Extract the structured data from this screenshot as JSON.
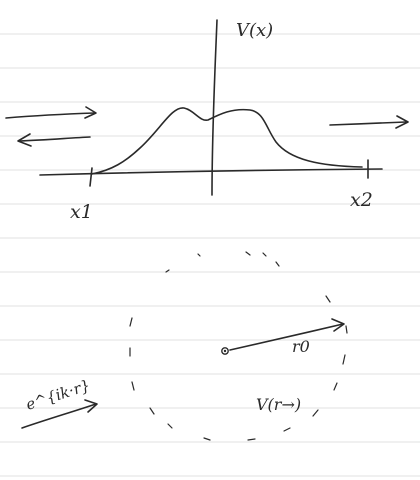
{
  "top_diagram": {
    "potential_label": "V(x)",
    "left_boundary_label": "x1",
    "right_boundary_label": "x2"
  },
  "bottom_diagram": {
    "radius_label": "r0",
    "potential_label": "V(r→)",
    "incoming_wave_label": "e^{ik·r}"
  },
  "colors": {
    "ink": "#2a2a2a",
    "paper": "#ffffff",
    "ruling": "#e2e2e2"
  }
}
